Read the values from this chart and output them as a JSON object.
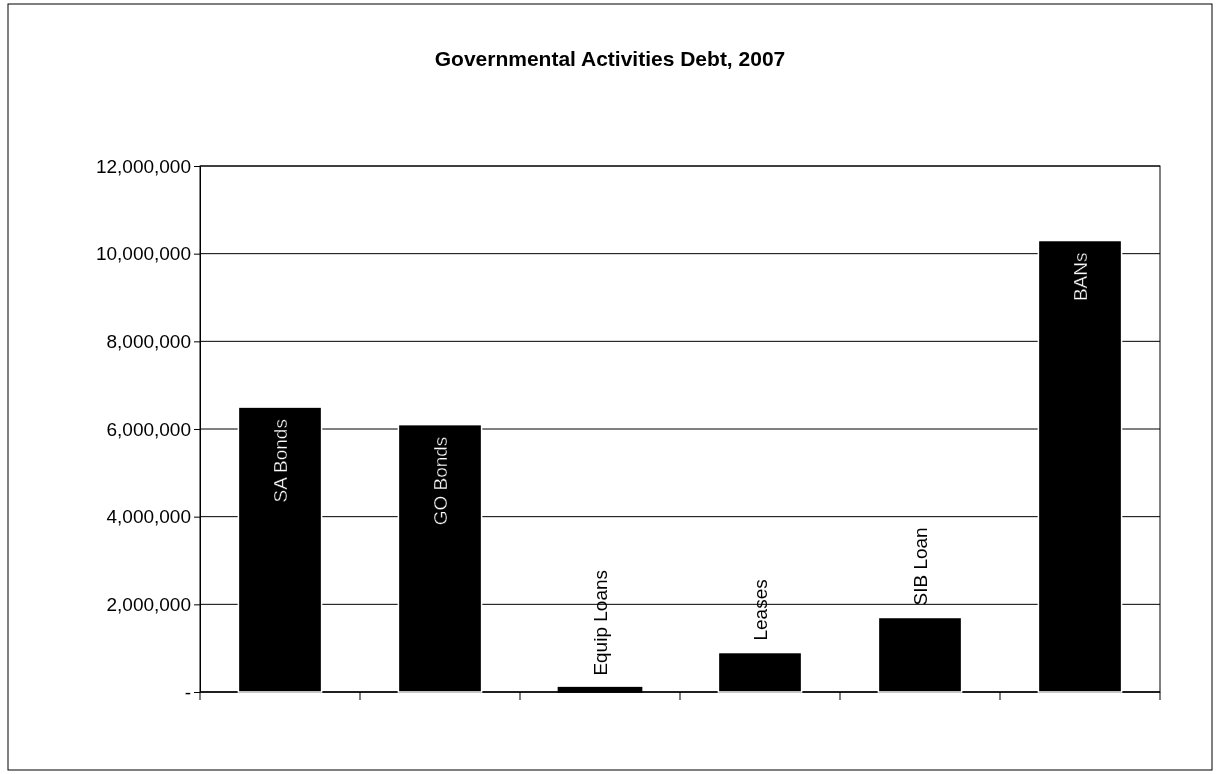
{
  "chart_data": {
    "type": "bar",
    "title": "Governmental Activities Debt, 2007",
    "categories": [
      "SA Bonds",
      "GO Bonds",
      "Equip Loans",
      "Leases",
      "SIB Loan",
      "BANs"
    ],
    "values": [
      6500000,
      6100000,
      100000,
      900000,
      1700000,
      10300000
    ],
    "color": "#000000",
    "ylim": [
      0,
      12000000
    ],
    "yticks": [
      {
        "value": 0,
        "label": "-"
      },
      {
        "value": 2000000,
        "label": "2,000,000"
      },
      {
        "value": 4000000,
        "label": "4,000,000"
      },
      {
        "value": 6000000,
        "label": "6,000,000"
      },
      {
        "value": 8000000,
        "label": "8,000,000"
      },
      {
        "value": 10000000,
        "label": "10,000,000"
      },
      {
        "value": 12000000,
        "label": "12,000,000"
      }
    ],
    "grid": "y"
  }
}
